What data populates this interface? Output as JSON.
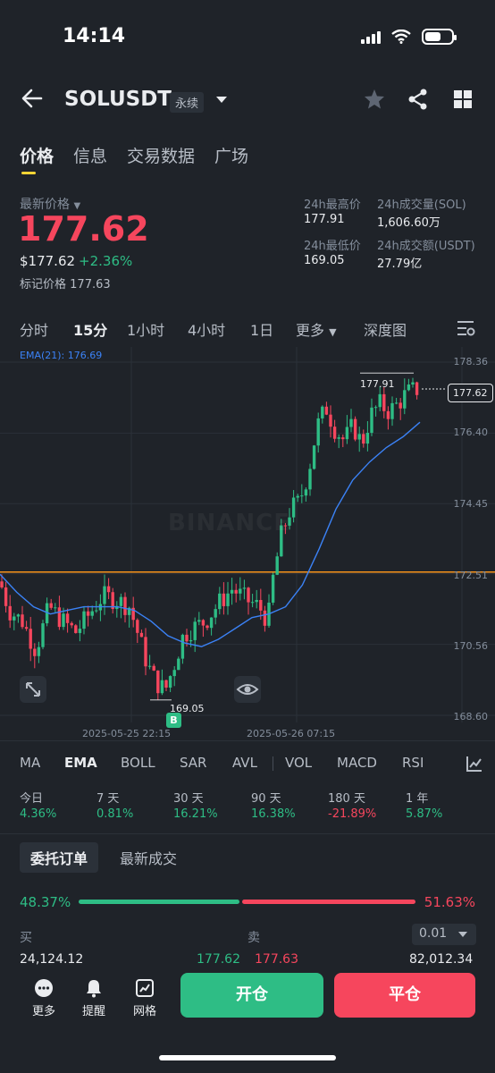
{
  "status": {
    "time": "14:14"
  },
  "header": {
    "symbol": "SOLUSDT",
    "badge": "永续"
  },
  "tabs": [
    "价格",
    "信息",
    "交易数据",
    "广场"
  ],
  "price": {
    "latest_label": "最新价格",
    "last": "177.62",
    "usd": "$177.62",
    "change": "+2.36%",
    "mark_label": "标记价格",
    "mark": "177.63"
  },
  "stats": {
    "high_label": "24h最高价",
    "high": "177.91",
    "low_label": "24h最低价",
    "low": "169.05",
    "vol_sol_label": "24h成交量(SOL)",
    "vol_sol": "1,606.60万",
    "vol_usdt_label": "24h成交额(USDT)",
    "vol_usdt": "27.79亿"
  },
  "timeframes": [
    "分时",
    "15分",
    "1小时",
    "4小时",
    "1日",
    "更多",
    "深度图"
  ],
  "chart": {
    "ema_label": "EMA(21): 176.69",
    "y_ticks": [
      "178.36",
      "176.40",
      "174.45",
      "172.51",
      "170.56",
      "168.60"
    ],
    "current_price": "177.62",
    "high_marker": "177.91",
    "low_marker": "169.05",
    "x_labels": [
      "2025-05-25 22:15",
      "2025-05-26 07:15"
    ],
    "buy_marker": "B",
    "watermark": "BINANCE"
  },
  "chart_data": {
    "type": "line",
    "title": "",
    "y_range": [
      168.6,
      178.36
    ],
    "y_ticks": [
      178.36,
      176.4,
      174.45,
      172.51,
      170.56,
      168.6
    ],
    "x_labels": [
      "2025-05-25 22:15",
      "2025-05-26 07:15"
    ],
    "series": [
      {
        "name": "EMA(21)",
        "values": [
          172.5,
          172.0,
          171.6,
          171.4,
          171.5,
          171.6,
          171.6,
          171.6,
          171.5,
          171.2,
          170.8,
          170.6,
          170.5,
          170.7,
          171.0,
          171.3,
          171.4,
          171.6,
          172.2,
          173.2,
          174.3,
          175.1,
          175.6,
          176.0,
          176.3,
          176.7
        ]
      }
    ],
    "last": 177.62,
    "high": 177.91,
    "low": 169.05,
    "ema21": 176.69,
    "orange_line": 172.51,
    "colors": {
      "up": "#2ebd85",
      "down": "#f6465d",
      "ema": "#3b82f6",
      "hline": "#f7931a"
    }
  },
  "indicators": [
    "MA",
    "EMA",
    "BOLL",
    "SAR",
    "AVL",
    "VOL",
    "MACD",
    "RSI"
  ],
  "performance": [
    {
      "label": "今日",
      "value": "4.36%"
    },
    {
      "label": "7 天",
      "value": "0.81%"
    },
    {
      "label": "30 天",
      "value": "16.21%"
    },
    {
      "label": "90 天",
      "value": "16.38%"
    },
    {
      "label": "180 天",
      "value": "-21.89%"
    },
    {
      "label": "1 年",
      "value": "5.87%"
    }
  ],
  "orderbook": {
    "tab_active": "委托订单",
    "tab_other": "最新成交",
    "buy_ratio": "48.37%",
    "sell_ratio": "51.63%",
    "buy_ratio_value": 48.37,
    "buy_label": "买",
    "sell_label": "卖",
    "precision": "0.01",
    "row": {
      "buy_qty": "24,124.12",
      "buy_price": "177.62",
      "sell_price": "177.63",
      "sell_qty": "82,012.34"
    }
  },
  "bottom": {
    "more": "更多",
    "alert": "提醒",
    "grid": "网格",
    "open": "开仓",
    "close": "平仓"
  },
  "colors": {
    "bg": "#1f2329",
    "up": "#2ebd85",
    "down": "#f6465d",
    "accent": "#fcd535"
  }
}
